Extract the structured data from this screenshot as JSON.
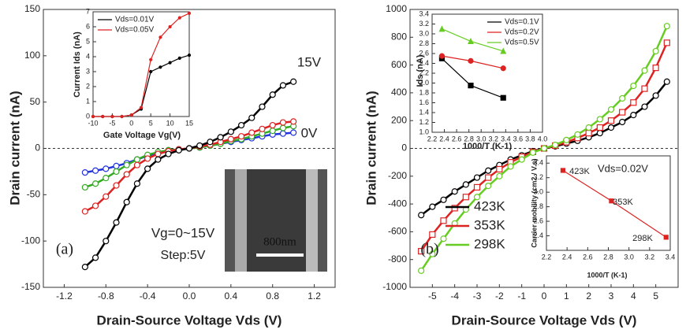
{
  "chart_data": [
    {
      "type": "line",
      "xlabel": "Drain-Source Voltage Vds (V)",
      "ylabel": "Drain current (nA)",
      "x": [
        -1.0,
        -0.9,
        -0.8,
        -0.7,
        -0.6,
        -0.5,
        -0.4,
        -0.3,
        -0.2,
        -0.1,
        0,
        0.1,
        0.2,
        0.3,
        0.4,
        0.5,
        0.6,
        0.7,
        0.8,
        0.9,
        1.0
      ],
      "series": [
        {
          "color": "#2233dd",
          "marker": "circle",
          "values": [
            -26,
            -24,
            -22,
            -19,
            -16,
            -12,
            -8,
            -5,
            -2,
            -1,
            0,
            1,
            3,
            5,
            7,
            9,
            11,
            13,
            15,
            16,
            17
          ]
        },
        {
          "color": "#33aa22",
          "marker": "circle",
          "values": [
            -42,
            -38,
            -32,
            -25,
            -18,
            -12,
            -7,
            -4,
            -2,
            -1,
            0,
            1,
            3,
            5,
            8,
            10,
            13,
            16,
            19,
            22,
            24
          ]
        },
        {
          "color": "#dd2222",
          "marker": "circle",
          "values": [
            -68,
            -62,
            -52,
            -40,
            -28,
            -18,
            -11,
            -6,
            -3,
            -1,
            0,
            2,
            4,
            7,
            10,
            13,
            17,
            21,
            25,
            28,
            29
          ]
        },
        {
          "color": "#000000",
          "marker": "circle",
          "values": [
            -128,
            -118,
            -100,
            -80,
            -58,
            -38,
            -22,
            -12,
            -6,
            -2,
            0,
            3,
            7,
            12,
            18,
            25,
            33,
            45,
            58,
            68,
            72
          ]
        }
      ],
      "xlim": [
        -1.4,
        1.4
      ],
      "xticks": [
        -1.2,
        -0.8,
        -0.4,
        {
          "value": 0,
          "label": "0.0"
        },
        0.4,
        0.8,
        1.2
      ],
      "ylim": [
        -150,
        150
      ],
      "yticks": [
        -150,
        -100,
        -50,
        0,
        50,
        100,
        150
      ],
      "zero_line": true,
      "annotations": [
        "15V",
        "0V",
        "Vg=0~15V",
        "Step:5V",
        "(a)"
      ]
    },
    {
      "type": "line",
      "xlabel": "Gate Voltage Vg(V)",
      "ylabel": "Current Ids (nA)",
      "x": [
        -10,
        -7.5,
        -5,
        -2.5,
        0,
        2.5,
        5,
        7.5,
        10,
        12.5,
        15
      ],
      "series": [
        {
          "name": "Vds=0.01V",
          "color": "#000000",
          "marker": "dot",
          "values": [
            0,
            0,
            0,
            0,
            0.1,
            0.5,
            3.0,
            3.3,
            3.6,
            3.9,
            4.1
          ]
        },
        {
          "name": "Vds=0.05V",
          "color": "#dd2222",
          "marker": "dot",
          "values": [
            0,
            0,
            0,
            0,
            0.1,
            0.6,
            3.8,
            5.3,
            6.0,
            6.6,
            6.9
          ]
        }
      ],
      "xlim": [
        -10,
        15
      ],
      "xticks": [
        -10,
        -5,
        0,
        5,
        10,
        15
      ],
      "ylim": [
        0,
        7
      ],
      "yticks": [
        0,
        1,
        2,
        3,
        4,
        5,
        6,
        7
      ],
      "legend": "upper left"
    },
    {
      "type": "line",
      "xlabel": "Drain-Source Voltage Vds (V)",
      "ylabel": "Drain current (nA)",
      "x": [
        -5.5,
        -5,
        -4.5,
        -4,
        -3.5,
        -3,
        -2.5,
        -2,
        -1.5,
        -1,
        -0.5,
        0,
        0.5,
        1,
        1.5,
        2,
        2.5,
        3,
        3.5,
        4,
        4.5,
        5,
        5.5
      ],
      "series": [
        {
          "name": "423K",
          "color": "#000000",
          "marker": "circle",
          "values": [
            -480,
            -420,
            -370,
            -310,
            -260,
            -210,
            -160,
            -120,
            -80,
            -50,
            -20,
            0,
            15,
            35,
            55,
            80,
            110,
            150,
            190,
            240,
            300,
            380,
            480
          ]
        },
        {
          "name": "353K",
          "color": "#dd2222",
          "marker": "square",
          "values": [
            -740,
            -620,
            -520,
            -430,
            -350,
            -280,
            -210,
            -150,
            -100,
            -60,
            -25,
            0,
            20,
            45,
            75,
            110,
            150,
            200,
            260,
            330,
            430,
            580,
            760
          ]
        },
        {
          "name": "298K",
          "color": "#66cc22",
          "marker": "circle",
          "values": [
            -880,
            -760,
            -650,
            -540,
            -440,
            -350,
            -270,
            -200,
            -130,
            -80,
            -30,
            0,
            25,
            60,
            100,
            150,
            210,
            280,
            360,
            450,
            560,
            700,
            880
          ]
        }
      ],
      "xlim": [
        -6,
        6
      ],
      "xticks": [
        -5,
        -4,
        -3,
        -2,
        -1,
        0,
        1,
        2,
        3,
        4,
        5
      ],
      "ylim": [
        -1000,
        1000
      ],
      "yticks": [
        -1000,
        -800,
        -600,
        -400,
        -200,
        0,
        200,
        400,
        600,
        800,
        1000
      ],
      "zero_line": true,
      "legend": "lower left",
      "annotations": [
        "(b)"
      ]
    },
    {
      "type": "scatter",
      "xlabel": "1000/T (K-1)",
      "ylabel": "Ids (nA)",
      "x": [
        2.36,
        2.83,
        3.36
      ],
      "series": [
        {
          "name": "Vds=0.1V",
          "color": "#000000",
          "marker": "square",
          "values": [
            2.5,
            1.95,
            1.7
          ]
        },
        {
          "name": "Vds=0.2V",
          "color": "#dd2222",
          "marker": "circle",
          "values": [
            2.55,
            2.45,
            2.3
          ]
        },
        {
          "name": "Vds=0.5V",
          "color": "#66cc22",
          "marker": "triangle",
          "values": [
            3.1,
            2.85,
            2.65
          ]
        }
      ],
      "xlim": [
        2.2,
        4.0
      ],
      "xticks": [
        2.2,
        2.4,
        2.6,
        2.8,
        {
          "value": 3.0,
          "label": "3.0"
        },
        3.2,
        3.4,
        3.6,
        3.8,
        {
          "value": 4.0,
          "label": "4.0"
        }
      ],
      "ylim": [
        1.0,
        3.4
      ],
      "yticks": [
        {
          "value": 1.0,
          "label": "1.0"
        },
        1.2,
        1.4,
        1.6,
        1.8,
        {
          "value": 2.0,
          "label": "2.0"
        },
        2.2,
        2.4,
        2.6,
        2.8,
        {
          "value": 3.0,
          "label": "3.0"
        },
        3.2,
        3.4
      ],
      "legend": "upper right"
    },
    {
      "type": "scatter",
      "xlabel": "1000/T (K-1)",
      "ylabel": "Carrier mobility (cm2 / V.s)",
      "x": [
        2.36,
        2.83,
        3.36
      ],
      "series": [
        {
          "color": "#dd2222",
          "marker": "square",
          "values": [
            3.3,
            2.88,
            2.38
          ]
        }
      ],
      "xlim": [
        2.2,
        3.4
      ],
      "xticks": [
        2.2,
        2.4,
        2.6,
        2.8,
        {
          "value": 3.0,
          "label": "3.0"
        },
        3.2,
        3.4
      ],
      "ylim": [
        2.2,
        3.5
      ],
      "yticks": [
        2.4,
        2.6,
        2.8,
        {
          "value": 3.0,
          "label": "3.0"
        },
        3.2,
        3.4
      ],
      "annotations": [
        "Vds=0.02V",
        "423K",
        "353K",
        "298K"
      ]
    }
  ],
  "image_inset": {
    "scale_bar": "800nm"
  }
}
